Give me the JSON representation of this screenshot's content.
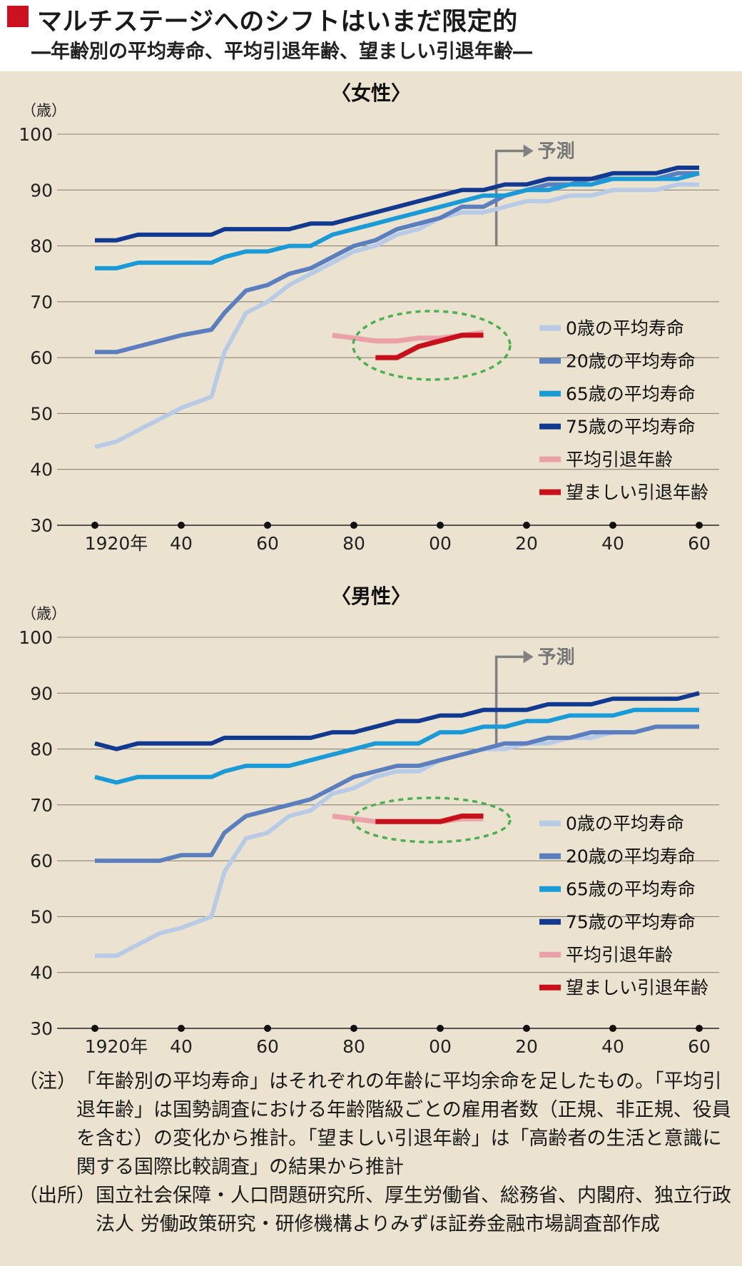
{
  "title": "マルチステージへのシフトはいまだ限定的",
  "subtitle": "―年齢別の平均寿命、平均引退年齢、望ましい引退年齢―",
  "colors": {
    "title_mark": "#cc1122",
    "panel_bg": "#ebe3d0",
    "life0": "#b8cbe6",
    "life20": "#5b7fbe",
    "life65": "#1a9ad6",
    "life75": "#11398f",
    "retire_avg": "#eba1a8",
    "retire_desired": "#c8101b",
    "circle": "#4caf50",
    "forecast": "#808080"
  },
  "chart_data": [
    {
      "type": "line",
      "title": "〈女性〉",
      "ylabel": "（歳）",
      "xlim": [
        1920,
        2060
      ],
      "ylim": [
        30,
        100
      ],
      "yticks": [
        "100",
        "90",
        "80",
        "70",
        "60",
        "50",
        "40",
        "30"
      ],
      "xticks": [
        "1920年",
        "40",
        "60",
        "80",
        "00",
        "20",
        "40",
        "60"
      ],
      "forecast_label": "予測",
      "forecast_start": 2013,
      "series": [
        {
          "name": "0歳の平均寿命",
          "color": "#b8cbe6",
          "x": [
            1920,
            1925,
            1930,
            1935,
            1940,
            1947,
            1950,
            1955,
            1960,
            1965,
            1970,
            1975,
            1980,
            1985,
            1990,
            1995,
            2000,
            2005,
            2010,
            2015,
            2020,
            2025,
            2030,
            2035,
            2040,
            2045,
            2050,
            2055,
            2060
          ],
          "y": [
            44,
            45,
            47,
            49,
            51,
            53,
            61,
            68,
            70,
            73,
            75,
            77,
            79,
            80,
            82,
            83,
            85,
            86,
            86,
            87,
            88,
            88,
            89,
            89,
            90,
            90,
            90,
            91,
            91
          ]
        },
        {
          "name": "20歳の平均寿命",
          "color": "#5b7fbe",
          "x": [
            1920,
            1925,
            1930,
            1935,
            1940,
            1947,
            1950,
            1955,
            1960,
            1965,
            1970,
            1975,
            1980,
            1985,
            1990,
            1995,
            2000,
            2005,
            2010,
            2015,
            2020,
            2025,
            2030,
            2035,
            2040,
            2045,
            2050,
            2055,
            2060
          ],
          "y": [
            61,
            61,
            62,
            63,
            64,
            65,
            68,
            72,
            73,
            75,
            76,
            78,
            80,
            81,
            83,
            84,
            85,
            87,
            87,
            89,
            90,
            91,
            91,
            92,
            92,
            92,
            92,
            93,
            93
          ]
        },
        {
          "name": "65歳の平均寿命",
          "color": "#1a9ad6",
          "x": [
            1920,
            1925,
            1930,
            1935,
            1940,
            1947,
            1950,
            1955,
            1960,
            1965,
            1970,
            1975,
            1980,
            1985,
            1990,
            1995,
            2000,
            2005,
            2010,
            2015,
            2020,
            2025,
            2030,
            2035,
            2040,
            2045,
            2050,
            2055,
            2060
          ],
          "y": [
            76,
            76,
            77,
            77,
            77,
            77,
            78,
            79,
            79,
            80,
            80,
            82,
            83,
            84,
            85,
            86,
            87,
            88,
            89,
            89,
            90,
            90,
            91,
            91,
            92,
            92,
            92,
            92,
            93
          ]
        },
        {
          "name": "75歳の平均寿命",
          "color": "#11398f",
          "x": [
            1920,
            1925,
            1930,
            1935,
            1940,
            1947,
            1950,
            1955,
            1960,
            1965,
            1970,
            1975,
            1980,
            1985,
            1990,
            1995,
            2000,
            2005,
            2010,
            2015,
            2020,
            2025,
            2030,
            2035,
            2040,
            2045,
            2050,
            2055,
            2060
          ],
          "y": [
            81,
            81,
            82,
            82,
            82,
            82,
            83,
            83,
            83,
            83,
            84,
            84,
            85,
            86,
            87,
            88,
            89,
            90,
            90,
            91,
            91,
            92,
            92,
            92,
            93,
            93,
            93,
            94,
            94
          ]
        },
        {
          "name": "平均引退年齢",
          "color": "#eba1a8",
          "x": [
            1975,
            1980,
            1985,
            1990,
            1995,
            2000,
            2005,
            2010
          ],
          "y": [
            64,
            63.5,
            63,
            63,
            63.5,
            63.5,
            64,
            64.5
          ]
        },
        {
          "name": "望ましい引退年齢",
          "color": "#c8101b",
          "x": [
            1985,
            1990,
            1995,
            2000,
            2005,
            2010
          ],
          "y": [
            60,
            60,
            62,
            63,
            64,
            64
          ]
        }
      ]
    },
    {
      "type": "line",
      "title": "〈男性〉",
      "ylabel": "（歳）",
      "xlim": [
        1920,
        2060
      ],
      "ylim": [
        30,
        100
      ],
      "yticks": [
        "100",
        "90",
        "80",
        "70",
        "60",
        "50",
        "40",
        "30"
      ],
      "xticks": [
        "1920年",
        "40",
        "60",
        "80",
        "00",
        "20",
        "40",
        "60"
      ],
      "forecast_label": "予測",
      "forecast_start": 2013,
      "series": [
        {
          "name": "0歳の平均寿命",
          "color": "#b8cbe6",
          "x": [
            1920,
            1925,
            1930,
            1935,
            1940,
            1947,
            1950,
            1955,
            1960,
            1965,
            1970,
            1975,
            1980,
            1985,
            1990,
            1995,
            2000,
            2005,
            2010,
            2015,
            2020,
            2025,
            2030,
            2035,
            2040,
            2045,
            2050,
            2055,
            2060
          ],
          "y": [
            43,
            43,
            45,
            47,
            48,
            50,
            58,
            64,
            65,
            68,
            69,
            72,
            73,
            75,
            76,
            76,
            78,
            79,
            80,
            80,
            81,
            81,
            82,
            82,
            83,
            83,
            84,
            84,
            84
          ]
        },
        {
          "name": "20歳の平均寿命",
          "color": "#5b7fbe",
          "x": [
            1920,
            1925,
            1930,
            1935,
            1940,
            1947,
            1950,
            1955,
            1960,
            1965,
            1970,
            1975,
            1980,
            1985,
            1990,
            1995,
            2000,
            2005,
            2010,
            2015,
            2020,
            2025,
            2030,
            2035,
            2040,
            2045,
            2050,
            2055,
            2060
          ],
          "y": [
            60,
            60,
            60,
            60,
            61,
            61,
            65,
            68,
            69,
            70,
            71,
            73,
            75,
            76,
            77,
            77,
            78,
            79,
            80,
            81,
            81,
            82,
            82,
            83,
            83,
            83,
            84,
            84,
            84
          ]
        },
        {
          "name": "65歳の平均寿命",
          "color": "#1a9ad6",
          "x": [
            1920,
            1925,
            1930,
            1935,
            1940,
            1947,
            1950,
            1955,
            1960,
            1965,
            1970,
            1975,
            1980,
            1985,
            1990,
            1995,
            2000,
            2005,
            2010,
            2015,
            2020,
            2025,
            2030,
            2035,
            2040,
            2045,
            2050,
            2055,
            2060
          ],
          "y": [
            75,
            74,
            75,
            75,
            75,
            75,
            76,
            77,
            77,
            77,
            78,
            79,
            80,
            81,
            81,
            81,
            83,
            83,
            84,
            84,
            85,
            85,
            86,
            86,
            86,
            87,
            87,
            87,
            87
          ]
        },
        {
          "name": "75歳の平均寿命",
          "color": "#11398f",
          "x": [
            1920,
            1925,
            1930,
            1935,
            1940,
            1947,
            1950,
            1955,
            1960,
            1965,
            1970,
            1975,
            1980,
            1985,
            1990,
            1995,
            2000,
            2005,
            2010,
            2015,
            2020,
            2025,
            2030,
            2035,
            2040,
            2045,
            2050,
            2055,
            2060
          ],
          "y": [
            81,
            80,
            81,
            81,
            81,
            81,
            82,
            82,
            82,
            82,
            82,
            83,
            83,
            84,
            85,
            85,
            86,
            86,
            87,
            87,
            87,
            88,
            88,
            88,
            89,
            89,
            89,
            89,
            90
          ]
        },
        {
          "name": "平均引退年齢",
          "color": "#eba1a8",
          "x": [
            1975,
            1980,
            1985,
            1990,
            1995,
            2000,
            2005,
            2010
          ],
          "y": [
            68,
            67.5,
            67,
            67,
            67,
            67,
            67.5,
            67.5
          ]
        },
        {
          "name": "望ましい引退年齢",
          "color": "#c8101b",
          "x": [
            1985,
            1990,
            1995,
            2000,
            2005,
            2010
          ],
          "y": [
            67,
            67,
            67,
            67,
            68,
            68
          ]
        }
      ]
    }
  ],
  "notes": [
    {
      "label": "（注）",
      "text": "「年齢別の平均寿命」はそれぞれの年齢に平均余命を足したもの。「平均引退年齢」は国勢調査における年齢階級ごとの雇用者数（正規、非正規、役員を含む）の変化から推計。「望ましい引退年齢」は「高齢者の生活と意識に関する国際比較調査」の結果から推計"
    },
    {
      "label": "（出所）",
      "text": "国立社会保障・人口問題研究所、厚生労働省、総務省、内閣府、独立行政法人 労働政策研究・研修機構よりみずほ証券金融市場調査部作成"
    }
  ]
}
